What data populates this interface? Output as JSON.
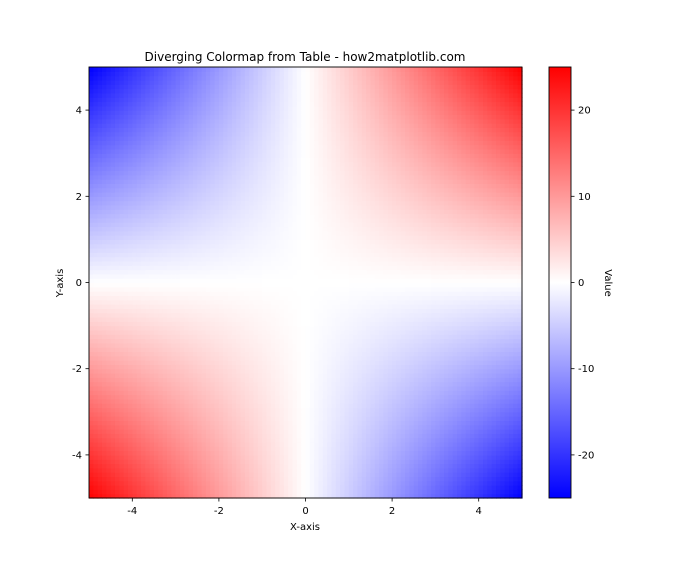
{
  "chart_data": {
    "type": "heatmap",
    "title": "Diverging Colormap from Table - how2matplotlib.com",
    "xlabel": "X-axis",
    "ylabel": "Y-axis",
    "xlim": [
      -5,
      5
    ],
    "ylim": [
      -5,
      5
    ],
    "x_ticks": [
      -4,
      -2,
      0,
      2,
      4
    ],
    "y_ticks": [
      -4,
      -2,
      0,
      2,
      4
    ],
    "z_function": "z = x * y",
    "grid_resolution": 100,
    "grid": false,
    "colormap": {
      "name": "bwr",
      "stops": [
        "#0000ff",
        "#ffffff",
        "#ff0000"
      ]
    },
    "colorbar": {
      "label": "Value",
      "vmin": -25,
      "vmax": 25,
      "ticks": [
        -20,
        -10,
        0,
        10,
        20
      ],
      "placement": "right"
    }
  }
}
